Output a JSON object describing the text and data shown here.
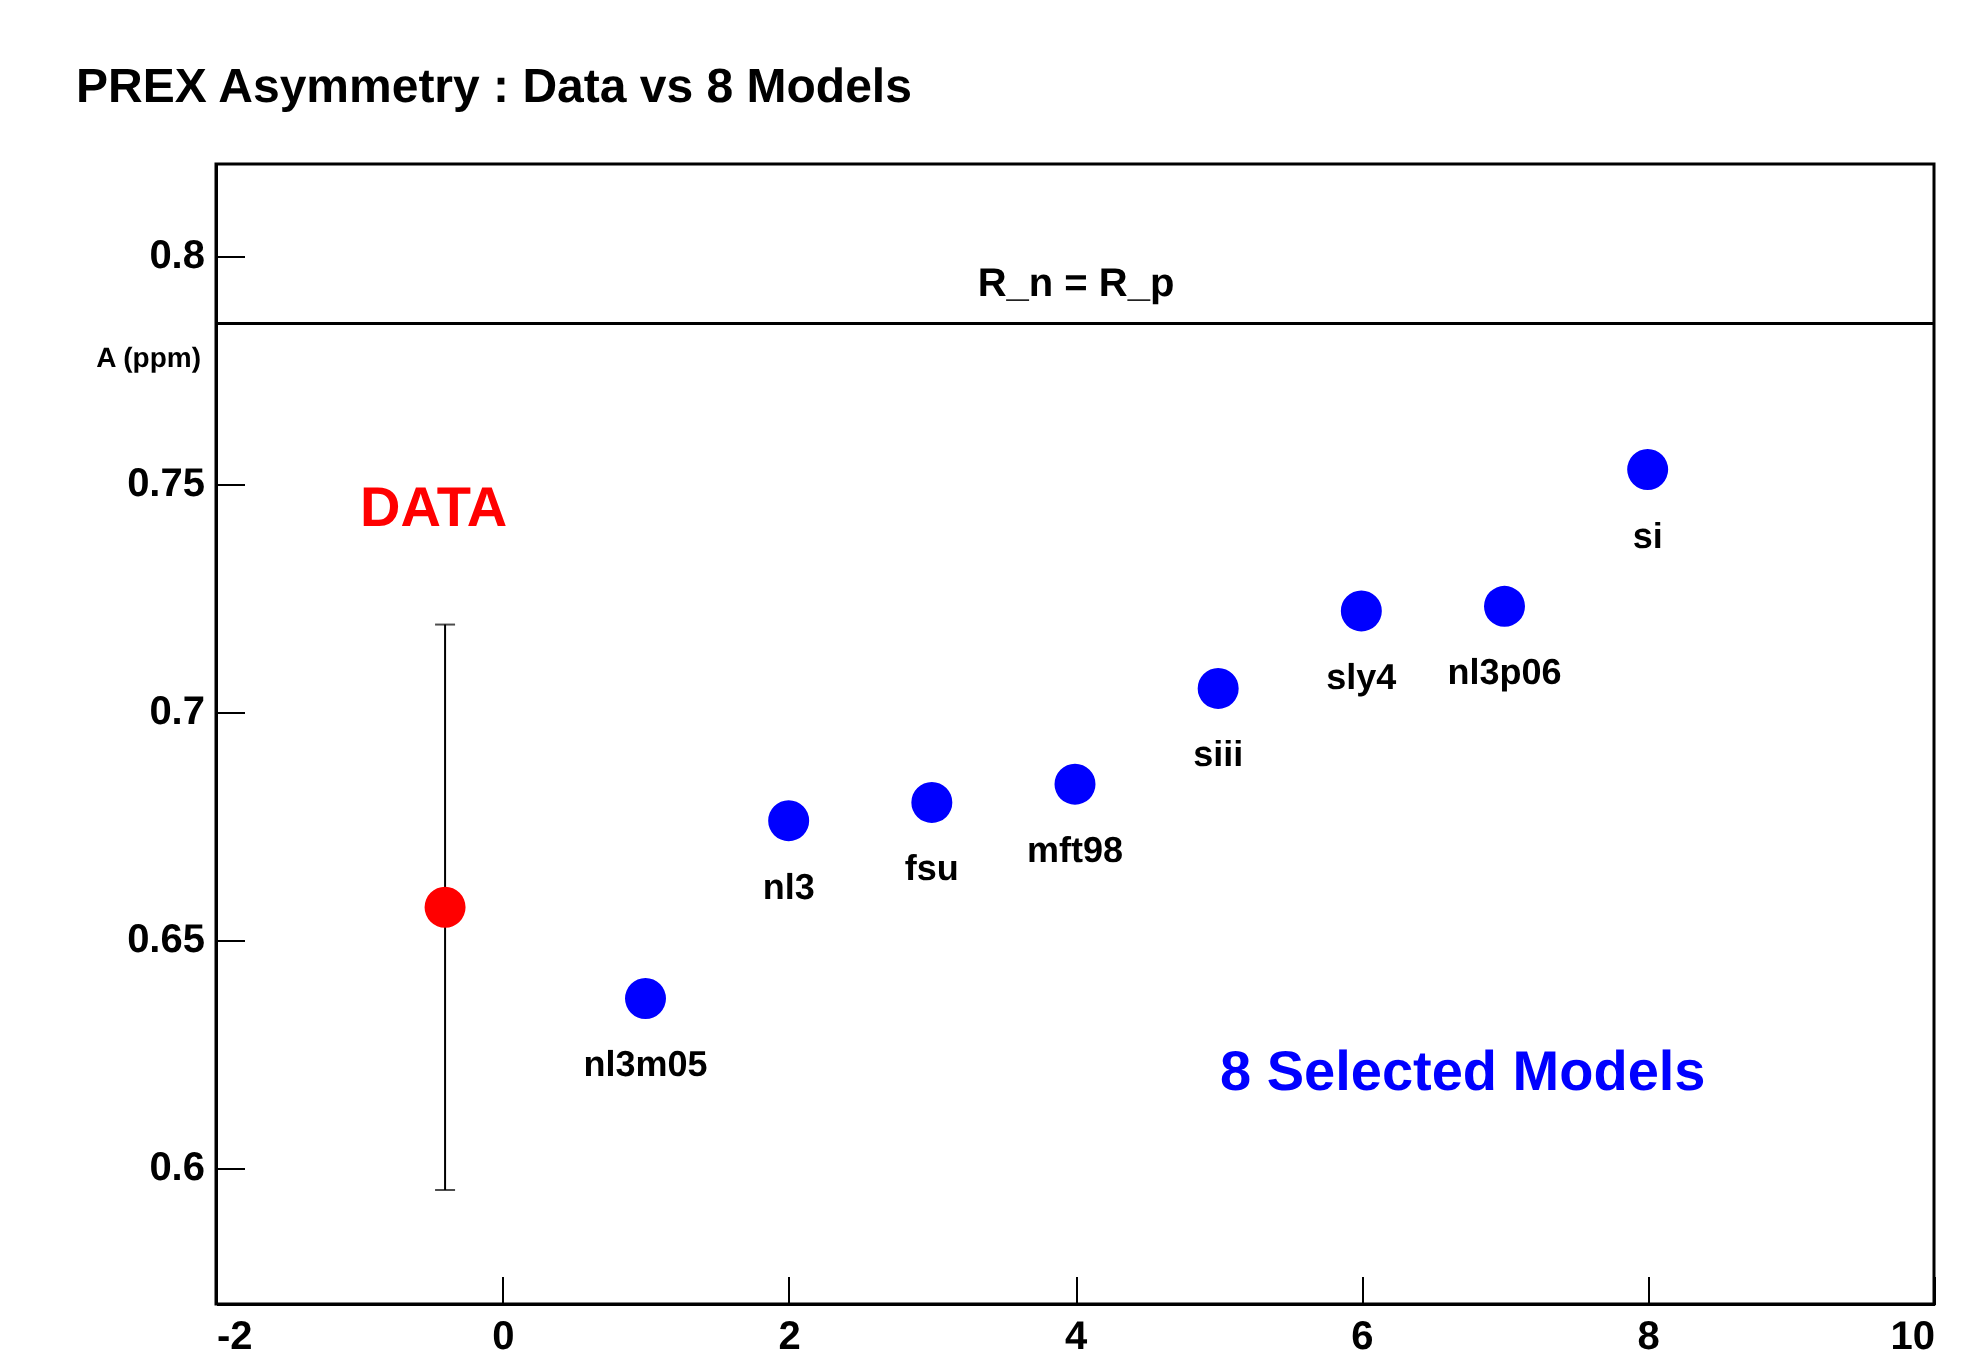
{
  "chart_data": {
    "type": "scatter",
    "title": "PREX Asymmetry : Data vs 8 Models",
    "ylabel": "A (ppm)",
    "xlim": [
      -2,
      10
    ],
    "xticks": [
      -2,
      0,
      2,
      4,
      6,
      8,
      10
    ],
    "ylim": [
      0.57,
      0.82
    ],
    "yticks": [
      0.6,
      0.65,
      0.7,
      0.75,
      0.8
    ],
    "grid": false,
    "legend": false,
    "marker": "circle",
    "series": [
      {
        "name": "DATA",
        "color": "#ff0000",
        "x": [
          -0.4
        ],
        "values": [
          0.657
        ],
        "errors": [
          [
            0.595,
            0.719
          ]
        ]
      },
      {
        "name": "8 Selected Models",
        "color": "#0000ff",
        "x": [
          1,
          2,
          3,
          4,
          5,
          6,
          7,
          8
        ],
        "values": [
          0.637,
          0.676,
          0.68,
          0.684,
          0.705,
          0.722,
          0.723,
          0.753
        ]
      }
    ],
    "ref_lines": [
      {
        "axis": "y",
        "value": 0.785,
        "label": "R_n = R_p",
        "color": "#000000"
      }
    ],
    "annotations": [
      {
        "text": "nl3m05",
        "x": 1,
        "y": 0.637
      },
      {
        "text": "nl3",
        "x": 2,
        "y": 0.676
      },
      {
        "text": "fsu",
        "x": 3,
        "y": 0.68
      },
      {
        "text": "mft98",
        "x": 4,
        "y": 0.684
      },
      {
        "text": "siii",
        "x": 5,
        "y": 0.705
      },
      {
        "text": "sly4",
        "x": 6,
        "y": 0.722
      },
      {
        "text": "nl3p06",
        "x": 7,
        "y": 0.723
      },
      {
        "text": "si",
        "x": 8,
        "y": 0.753
      }
    ]
  }
}
